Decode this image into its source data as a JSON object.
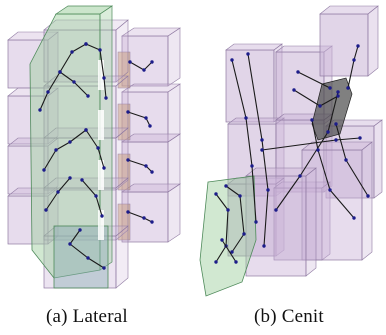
{
  "figure": {
    "panels": [
      {
        "id": "a",
        "caption": "(a) Lateral"
      },
      {
        "id": "b",
        "caption": "(b) Cenit"
      }
    ],
    "colors": {
      "purple_fill": "#c9b2d6",
      "purple_edge": "#8f7aa2",
      "green_fill": "#98cc98",
      "green_edge": "#4e8a5a",
      "orange_fill": "#c89a6a",
      "dark_block": "#4a4a4a",
      "link_line": "#1a1a1a",
      "node_dot": "#1c1c8a"
    }
  }
}
